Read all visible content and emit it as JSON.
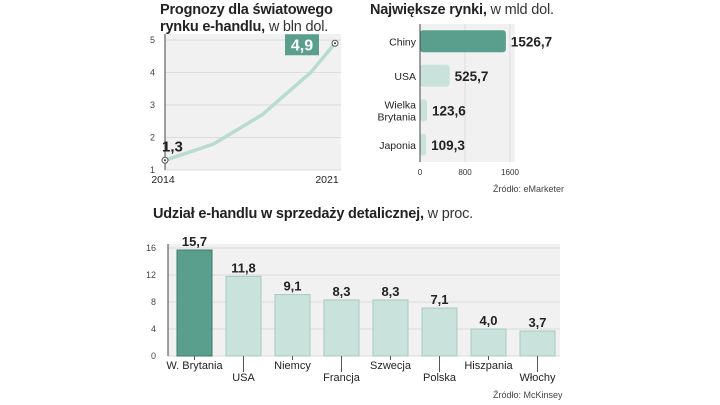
{
  "chart_data": [
    {
      "type": "line",
      "title_bold": "Prognozy dla światowego rynku e-handlu,",
      "title_unit": "w bln dol.",
      "x": [
        2014,
        2016,
        2018,
        2020,
        2021
      ],
      "values": [
        1.3,
        1.8,
        2.7,
        4.0,
        4.9
      ],
      "x_ticks": [
        "2014",
        "2021"
      ],
      "y_ticks": [
        "1",
        "2",
        "3",
        "4",
        "5"
      ],
      "ylim": [
        1,
        5
      ],
      "labels": {
        "start": "1,3",
        "end": "4,9"
      },
      "grid": true,
      "accent": "#5a9f8d",
      "line_color": "#b8dbd2"
    },
    {
      "type": "bar",
      "orientation": "horizontal",
      "title_bold": "Największe rynki,",
      "title_unit": "w mld dol.",
      "categories": [
        "Chiny",
        "USA",
        "Wielka Brytania",
        "Japonia"
      ],
      "values": [
        1526.7,
        525.7,
        123.6,
        109.3
      ],
      "value_labels": [
        "1526,7",
        "525,7",
        "123,6",
        "109,3"
      ],
      "x_ticks": [
        "0",
        "800",
        "1600"
      ],
      "xlim": [
        0,
        1600
      ],
      "source": "Źródło: eMarketer",
      "highlight_color": "#5a9f8d",
      "bar_color": "#c9e2db"
    },
    {
      "type": "bar",
      "title_bold": "Udział e-handlu w sprzedaży detalicznej,",
      "title_unit": "w proc.",
      "categories": [
        "W. Brytania",
        "USA",
        "Niemcy",
        "Francja",
        "Szwecja",
        "Polska",
        "Hiszpania",
        "Włochy"
      ],
      "values": [
        15.7,
        11.8,
        9.1,
        8.3,
        8.3,
        7.1,
        4.0,
        3.7
      ],
      "value_labels": [
        "15,7",
        "11,8",
        "9,1",
        "8,3",
        "8,3",
        "7,1",
        "4,0",
        "3,7"
      ],
      "y_ticks": [
        "0",
        "4",
        "8",
        "12",
        "16"
      ],
      "ylim": [
        0,
        16
      ],
      "source": "Źródło: McKinsey",
      "highlight_color": "#5a9f8d",
      "bar_color": "#c9e2db"
    }
  ]
}
